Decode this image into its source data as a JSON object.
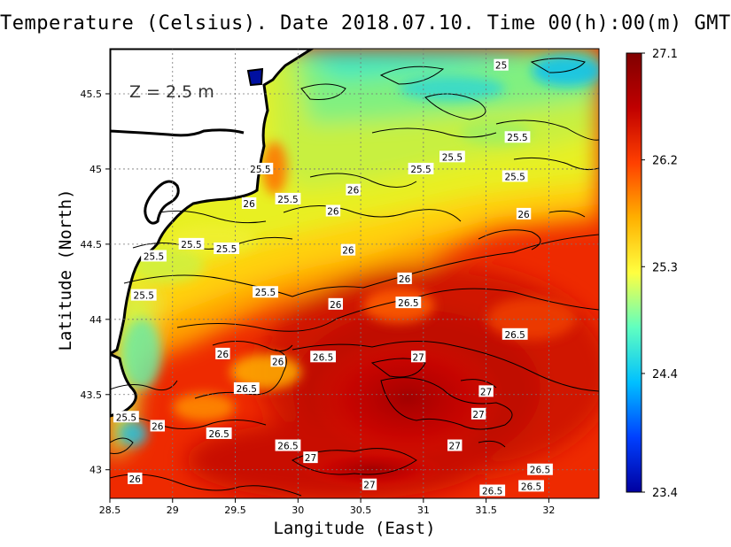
{
  "chart_data": {
    "type": "heatmap",
    "title": "Temperature (Celsius). Date 2018.07.10. Time 00(h):00(m) GMT",
    "xlabel": "Langitude (East)",
    "ylabel": "Latitude (North)",
    "annotation": "Z = 2.5 m",
    "xlim": [
      28.5,
      32.4
    ],
    "ylim": [
      42.81,
      45.8
    ],
    "x_ticks": [
      28.5,
      29,
      29.5,
      30,
      30.5,
      31,
      31.5,
      32
    ],
    "x_tick_labels": [
      "28.5",
      "29",
      "29.5",
      "30",
      "30.5",
      "31",
      "31.5",
      "32"
    ],
    "y_ticks": [
      43,
      43.5,
      44,
      44.5,
      45,
      45.5
    ],
    "y_tick_labels": [
      "43",
      "43.5",
      "44",
      "44.5",
      "45",
      "45.5"
    ],
    "grid": true,
    "colorbar": {
      "position": "right",
      "vmin": 23.4,
      "vmax": 27.1,
      "ticks": [
        23.4,
        24.4,
        25.3,
        26.2,
        27.1
      ],
      "tick_labels": [
        "23.4",
        "24.4",
        "25.3",
        "26.2",
        "27.1"
      ],
      "colors": [
        "#0000a0",
        "#0040ff",
        "#00c0ff",
        "#60ffc0",
        "#ffff40",
        "#ffb000",
        "#ff4000",
        "#c00000",
        "#800000"
      ]
    },
    "contour_labels": [
      {
        "x": 31.62,
        "y": 45.69,
        "text": "25"
      },
      {
        "x": 31.75,
        "y": 45.21,
        "text": "25.5"
      },
      {
        "x": 31.23,
        "y": 45.08,
        "text": "25.5"
      },
      {
        "x": 30.98,
        "y": 45.0,
        "text": "25.5"
      },
      {
        "x": 31.73,
        "y": 44.95,
        "text": "25.5"
      },
      {
        "x": 29.7,
        "y": 45.0,
        "text": "25.5"
      },
      {
        "x": 30.44,
        "y": 44.86,
        "text": "26"
      },
      {
        "x": 29.61,
        "y": 44.77,
        "text": "26"
      },
      {
        "x": 29.92,
        "y": 44.8,
        "text": "25.5"
      },
      {
        "x": 30.28,
        "y": 44.72,
        "text": "26"
      },
      {
        "x": 31.8,
        "y": 44.7,
        "text": "26"
      },
      {
        "x": 29.15,
        "y": 44.5,
        "text": "25.5"
      },
      {
        "x": 29.43,
        "y": 44.47,
        "text": "25.5"
      },
      {
        "x": 30.4,
        "y": 44.46,
        "text": "26"
      },
      {
        "x": 28.85,
        "y": 44.42,
        "text": "25.5"
      },
      {
        "x": 30.85,
        "y": 44.27,
        "text": "26"
      },
      {
        "x": 29.74,
        "y": 44.18,
        "text": "25.5"
      },
      {
        "x": 28.77,
        "y": 44.16,
        "text": "25.5"
      },
      {
        "x": 30.88,
        "y": 44.11,
        "text": "26.5"
      },
      {
        "x": 30.3,
        "y": 44.1,
        "text": "26"
      },
      {
        "x": 31.73,
        "y": 43.9,
        "text": "26.5"
      },
      {
        "x": 29.4,
        "y": 43.77,
        "text": "26"
      },
      {
        "x": 30.2,
        "y": 43.75,
        "text": "26.5"
      },
      {
        "x": 29.84,
        "y": 43.72,
        "text": "26"
      },
      {
        "x": 30.96,
        "y": 43.75,
        "text": "27"
      },
      {
        "x": 29.59,
        "y": 43.54,
        "text": "26.5"
      },
      {
        "x": 31.5,
        "y": 43.52,
        "text": "27"
      },
      {
        "x": 31.44,
        "y": 43.37,
        "text": "27"
      },
      {
        "x": 28.63,
        "y": 43.35,
        "text": "25.5"
      },
      {
        "x": 28.88,
        "y": 43.29,
        "text": "26"
      },
      {
        "x": 29.37,
        "y": 43.24,
        "text": "26.5"
      },
      {
        "x": 29.92,
        "y": 43.16,
        "text": "26.5"
      },
      {
        "x": 31.25,
        "y": 43.16,
        "text": "27"
      },
      {
        "x": 30.1,
        "y": 43.08,
        "text": "27"
      },
      {
        "x": 31.93,
        "y": 43.0,
        "text": "26.5"
      },
      {
        "x": 28.7,
        "y": 42.94,
        "text": "26"
      },
      {
        "x": 30.57,
        "y": 42.9,
        "text": "27"
      },
      {
        "x": 31.86,
        "y": 42.89,
        "text": "26.5"
      },
      {
        "x": 31.55,
        "y": 42.86,
        "text": "26.5"
      }
    ]
  }
}
